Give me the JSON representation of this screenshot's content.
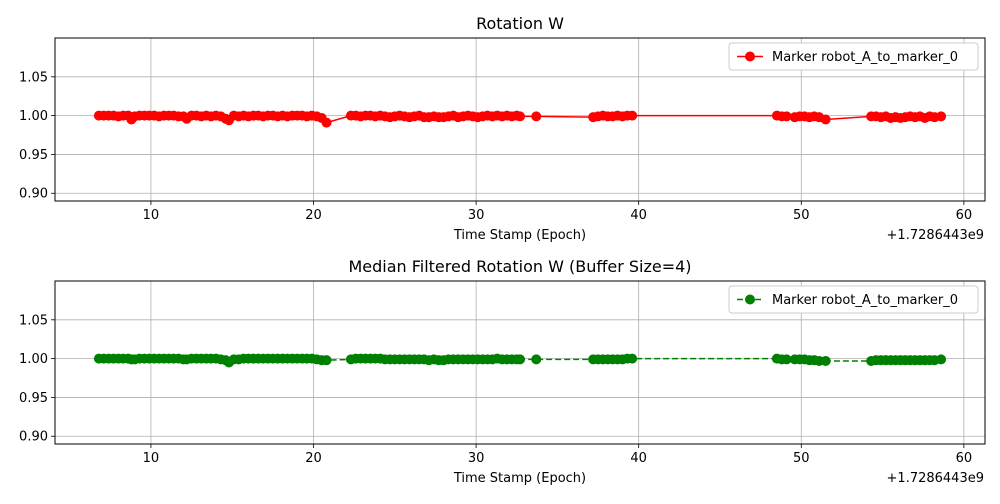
{
  "chart_data": [
    {
      "type": "line",
      "title": "Rotation W",
      "xlabel": "Time Stamp (Epoch)",
      "ylabel": "",
      "x_offset_label": "+1.7286443e9",
      "xlim": [
        4.1,
        61.3
      ],
      "ylim": [
        0.89,
        1.1
      ],
      "x_ticks": [
        10,
        20,
        30,
        40,
        50,
        60
      ],
      "y_ticks": [
        0.9,
        0.95,
        1.0,
        1.05
      ],
      "x_tick_labels": [
        "10",
        "20",
        "30",
        "40",
        "50",
        "60"
      ],
      "y_tick_labels": [
        "0.90",
        "0.95",
        "1.00",
        "1.05"
      ],
      "grid": true,
      "legend_position": "upper right",
      "series": [
        {
          "name": "Marker robot_A_to_marker_0",
          "color": "#ff0000",
          "line_style": "solid",
          "marker": "circle",
          "x": [
            6.8,
            7.1,
            7.4,
            7.7,
            8.0,
            8.3,
            8.6,
            8.8,
            9.0,
            9.3,
            9.6,
            9.9,
            10.2,
            10.5,
            10.8,
            11.1,
            11.4,
            11.7,
            12.0,
            12.2,
            12.5,
            12.8,
            13.1,
            13.4,
            13.7,
            14.0,
            14.3,
            14.6,
            14.8,
            15.1,
            15.4,
            15.7,
            16.0,
            16.3,
            16.6,
            16.9,
            17.2,
            17.5,
            17.8,
            18.1,
            18.4,
            18.7,
            19.0,
            19.3,
            19.6,
            19.9,
            20.2,
            20.5,
            20.8,
            22.3,
            22.6,
            22.9,
            23.2,
            23.5,
            23.8,
            24.1,
            24.4,
            24.7,
            25.0,
            25.3,
            25.6,
            25.9,
            26.2,
            26.5,
            26.8,
            27.1,
            27.4,
            27.7,
            28.0,
            28.3,
            28.6,
            28.9,
            29.2,
            29.5,
            29.8,
            30.1,
            30.4,
            30.7,
            31.0,
            31.3,
            31.6,
            31.9,
            32.2,
            32.5,
            32.7,
            33.7,
            37.2,
            37.5,
            37.8,
            38.1,
            38.4,
            38.7,
            39.0,
            39.3,
            39.6,
            48.5,
            48.8,
            49.1,
            49.6,
            49.9,
            50.2,
            50.5,
            50.8,
            51.1,
            51.5,
            54.3,
            54.6,
            54.9,
            55.2,
            55.5,
            55.8,
            56.1,
            56.4,
            56.7,
            57.0,
            57.3,
            57.6,
            57.9,
            58.2,
            58.6
          ],
          "y": [
            1.0,
            1.0,
            1.0,
            1.0,
            0.999,
            1.0,
            1.0,
            0.995,
            0.999,
            1.0,
            1.0,
            1.0,
            1.0,
            0.999,
            1.0,
            1.0,
            1.0,
            0.999,
            0.999,
            0.996,
            1.0,
            1.0,
            0.999,
            1.0,
            0.999,
            1.0,
            0.999,
            0.996,
            0.994,
            1.0,
            0.999,
            1.0,
            0.999,
            1.0,
            1.0,
            0.999,
            1.0,
            1.0,
            0.999,
            1.0,
            0.999,
            1.0,
            1.0,
            1.0,
            0.999,
            1.0,
            0.999,
            0.997,
            0.991,
            1.0,
            1.0,
            0.999,
            1.0,
            1.0,
            0.999,
            1.0,
            0.999,
            0.998,
            0.999,
            1.0,
            0.999,
            0.998,
            0.999,
            1.0,
            0.998,
            0.998,
            0.999,
            0.998,
            0.998,
            0.999,
            1.0,
            0.998,
            0.999,
            1.0,
            0.999,
            0.998,
            0.999,
            1.0,
            0.999,
            1.0,
            0.999,
            1.0,
            0.999,
            1.0,
            0.999,
            0.999,
            0.998,
            0.999,
            1.0,
            0.999,
            0.999,
            1.0,
            0.999,
            1.0,
            1.0,
            1.0,
            0.999,
            0.999,
            0.998,
            0.999,
            0.999,
            0.998,
            0.999,
            0.998,
            0.995,
            0.999,
            0.999,
            0.998,
            0.999,
            0.997,
            0.998,
            0.997,
            0.998,
            0.999,
            0.998,
            0.999,
            0.997,
            0.999,
            0.998,
            0.999
          ]
        }
      ]
    },
    {
      "type": "line",
      "title": "Median Filtered Rotation W (Buffer Size=4)",
      "xlabel": "Time Stamp (Epoch)",
      "ylabel": "",
      "x_offset_label": "+1.7286443e9",
      "xlim": [
        4.1,
        61.3
      ],
      "ylim": [
        0.89,
        1.1
      ],
      "x_ticks": [
        10,
        20,
        30,
        40,
        50,
        60
      ],
      "y_ticks": [
        0.9,
        0.95,
        1.0,
        1.05
      ],
      "x_tick_labels": [
        "10",
        "20",
        "30",
        "40",
        "50",
        "60"
      ],
      "y_tick_labels": [
        "0.90",
        "0.95",
        "1.00",
        "1.05"
      ],
      "grid": true,
      "legend_position": "upper right",
      "series": [
        {
          "name": "Marker robot_A_to_marker_0",
          "color": "#008000",
          "line_style": "dashed",
          "marker": "circle",
          "x": [
            6.8,
            7.1,
            7.4,
            7.7,
            8.0,
            8.3,
            8.6,
            8.8,
            9.0,
            9.3,
            9.6,
            9.9,
            10.2,
            10.5,
            10.8,
            11.1,
            11.4,
            11.7,
            12.0,
            12.2,
            12.5,
            12.8,
            13.1,
            13.4,
            13.7,
            14.0,
            14.3,
            14.6,
            14.8,
            15.1,
            15.4,
            15.7,
            16.0,
            16.3,
            16.6,
            16.9,
            17.2,
            17.5,
            17.8,
            18.1,
            18.4,
            18.7,
            19.0,
            19.3,
            19.6,
            19.9,
            20.2,
            20.5,
            20.8,
            22.3,
            22.6,
            22.9,
            23.2,
            23.5,
            23.8,
            24.1,
            24.4,
            24.7,
            25.0,
            25.3,
            25.6,
            25.9,
            26.2,
            26.5,
            26.8,
            27.1,
            27.4,
            27.7,
            28.0,
            28.3,
            28.6,
            28.9,
            29.2,
            29.5,
            29.8,
            30.1,
            30.4,
            30.7,
            31.0,
            31.3,
            31.6,
            31.9,
            32.2,
            32.5,
            32.7,
            33.7,
            37.2,
            37.5,
            37.8,
            38.1,
            38.4,
            38.7,
            39.0,
            39.3,
            39.6,
            48.5,
            48.8,
            49.1,
            49.6,
            49.9,
            50.2,
            50.5,
            50.8,
            51.1,
            51.5,
            54.3,
            54.6,
            54.9,
            55.2,
            55.5,
            55.8,
            56.1,
            56.4,
            56.7,
            57.0,
            57.3,
            57.6,
            57.9,
            58.2,
            58.6
          ],
          "y": [
            1.0,
            1.0,
            1.0,
            1.0,
            1.0,
            1.0,
            1.0,
            0.999,
            0.999,
            1.0,
            1.0,
            1.0,
            1.0,
            1.0,
            1.0,
            1.0,
            1.0,
            1.0,
            0.999,
            0.999,
            1.0,
            1.0,
            1.0,
            1.0,
            1.0,
            1.0,
            0.999,
            0.998,
            0.995,
            0.999,
            0.999,
            1.0,
            1.0,
            1.0,
            1.0,
            1.0,
            1.0,
            1.0,
            1.0,
            1.0,
            1.0,
            1.0,
            1.0,
            1.0,
            1.0,
            1.0,
            0.999,
            0.998,
            0.998,
            0.999,
            1.0,
            1.0,
            1.0,
            1.0,
            1.0,
            1.0,
            0.999,
            0.999,
            0.999,
            0.999,
            0.999,
            0.999,
            0.999,
            0.999,
            0.999,
            0.998,
            0.999,
            0.998,
            0.998,
            0.999,
            0.999,
            0.999,
            0.999,
            0.999,
            0.999,
            0.999,
            0.999,
            0.999,
            0.999,
            1.0,
            0.999,
            0.999,
            0.999,
            0.999,
            0.999,
            0.999,
            0.999,
            0.999,
            0.999,
            0.999,
            0.999,
            0.999,
            0.999,
            1.0,
            1.0,
            1.0,
            0.999,
            0.999,
            0.999,
            0.999,
            0.999,
            0.998,
            0.998,
            0.997,
            0.997,
            0.997,
            0.998,
            0.998,
            0.998,
            0.998,
            0.998,
            0.998,
            0.998,
            0.998,
            0.998,
            0.998,
            0.998,
            0.998,
            0.998,
            0.999
          ]
        }
      ]
    }
  ]
}
